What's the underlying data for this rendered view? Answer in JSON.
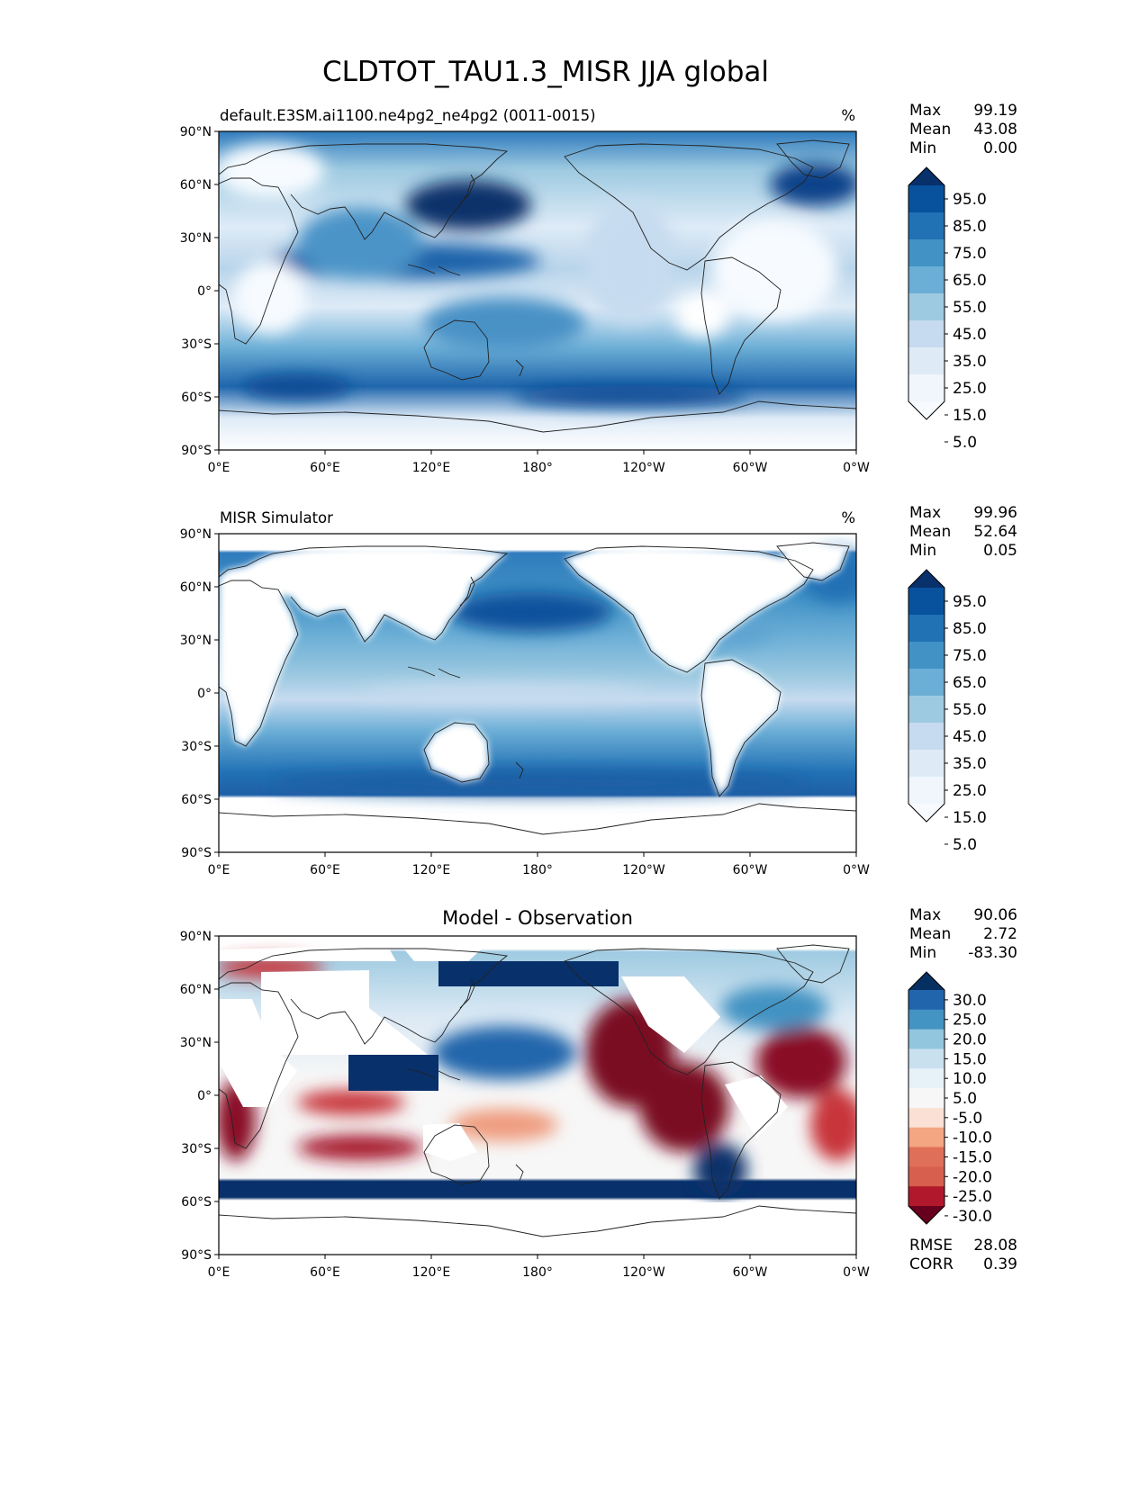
{
  "page": {
    "title": "CLDTOT_TAU1.3_MISR JJA global"
  },
  "axes": {
    "lat_ticks": [
      "90°N",
      "60°N",
      "30°N",
      "0°",
      "30°S",
      "60°S",
      "90°S"
    ],
    "lon_ticks": [
      "0°E",
      "60°E",
      "120°E",
      "180°",
      "120°W",
      "60°W",
      "0°W"
    ]
  },
  "panels": [
    {
      "id": "model",
      "title_left": "default.E3SM.ai1100.ne4pg2_ne4pg2 (0011-0015)",
      "title_center": "",
      "units": "%",
      "stats": [
        {
          "label": "Max",
          "value": "99.19"
        },
        {
          "label": "Mean",
          "value": "43.08"
        },
        {
          "label": "Min",
          "value": "0.00"
        }
      ],
      "colorbar": {
        "labels": [
          "95.0",
          "85.0",
          "75.0",
          "65.0",
          "55.0",
          "45.0",
          "35.0",
          "25.0",
          "15.0",
          "5.0"
        ],
        "colors": [
          "#08306b",
          "#08519c",
          "#2171b5",
          "#4292c6",
          "#6baed6",
          "#9ecae1",
          "#c6dbef",
          "#deebf7",
          "#f0f6fc",
          "#f7fbff"
        ]
      },
      "extra_stats": []
    },
    {
      "id": "obs",
      "title_left": "MISR Simulator",
      "title_center": "",
      "units": "%",
      "stats": [
        {
          "label": "Max",
          "value": "99.96"
        },
        {
          "label": "Mean",
          "value": "52.64"
        },
        {
          "label": "Min",
          "value": "0.05"
        }
      ],
      "colorbar": {
        "labels": [
          "95.0",
          "85.0",
          "75.0",
          "65.0",
          "55.0",
          "45.0",
          "35.0",
          "25.0",
          "15.0",
          "5.0"
        ],
        "colors": [
          "#08306b",
          "#08519c",
          "#2171b5",
          "#4292c6",
          "#6baed6",
          "#9ecae1",
          "#c6dbef",
          "#deebf7",
          "#f0f6fc",
          "#f7fbff"
        ]
      },
      "extra_stats": []
    },
    {
      "id": "diff",
      "title_left": "",
      "title_center": "Model - Observation",
      "units": "",
      "stats": [
        {
          "label": "Max",
          "value": "90.06"
        },
        {
          "label": "Mean",
          "value": "2.72"
        },
        {
          "label": "Min",
          "value": "-83.30"
        }
      ],
      "colorbar": {
        "labels": [
          "30.0",
          "25.0",
          "20.0",
          "15.0",
          "10.0",
          "5.0",
          "-5.0",
          "-10.0",
          "-15.0",
          "-20.0",
          "-25.0",
          "-30.0"
        ],
        "colors": [
          "#053061",
          "#2166ac",
          "#4393c3",
          "#92c5de",
          "#c9e0ef",
          "#e7f1f8",
          "#f7f7f7",
          "#fbe1d5",
          "#f4a582",
          "#e06f5a",
          "#d6604d",
          "#b2182b",
          "#67001f"
        ]
      },
      "extra_stats": [
        {
          "label": "RMSE",
          "value": "28.08"
        },
        {
          "label": "CORR",
          "value": "0.39"
        }
      ]
    }
  ]
}
